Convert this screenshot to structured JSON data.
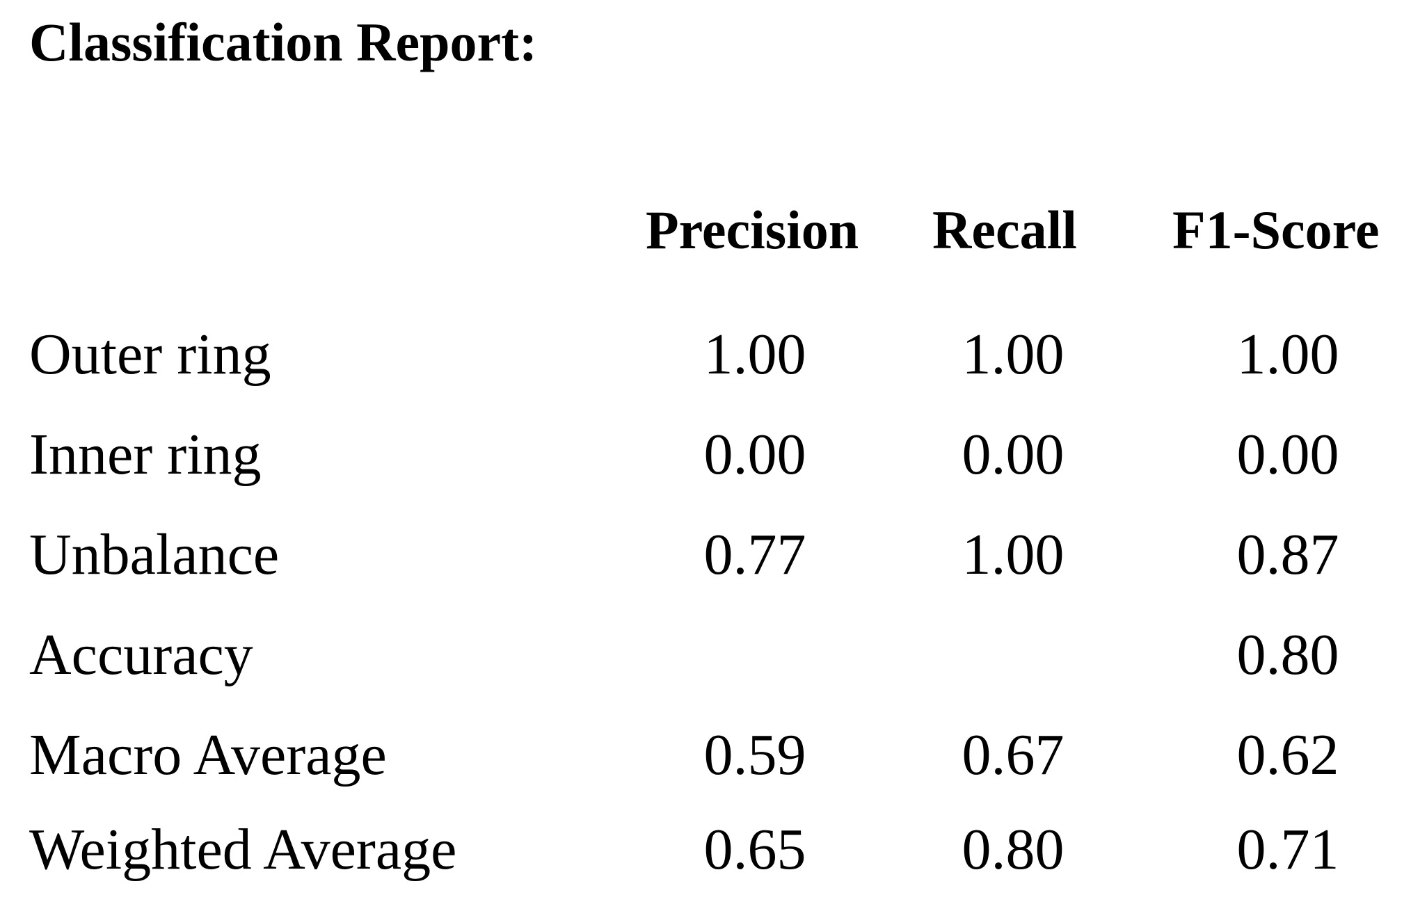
{
  "report": {
    "title": "Classification Report:",
    "columns": {
      "precision": "Precision",
      "recall": "Recall",
      "f1": "F1-Score"
    },
    "rows": [
      {
        "label": "Outer ring",
        "precision": "1.00",
        "recall": "1.00",
        "f1": "1.00"
      },
      {
        "label": "Inner ring",
        "precision": "0.00",
        "recall": "0.00",
        "f1": "0.00"
      },
      {
        "label": "Unbalance",
        "precision": "0.77",
        "recall": "1.00",
        "f1": "0.87"
      },
      {
        "label": "Accuracy",
        "precision": "",
        "recall": "",
        "f1": "0.80"
      },
      {
        "label": "Macro Average",
        "precision": "0.59",
        "recall": "0.67",
        "f1": "0.62"
      },
      {
        "label": "Weighted Average",
        "precision": "0.65",
        "recall": "0.80",
        "f1": "0.71"
      }
    ]
  }
}
